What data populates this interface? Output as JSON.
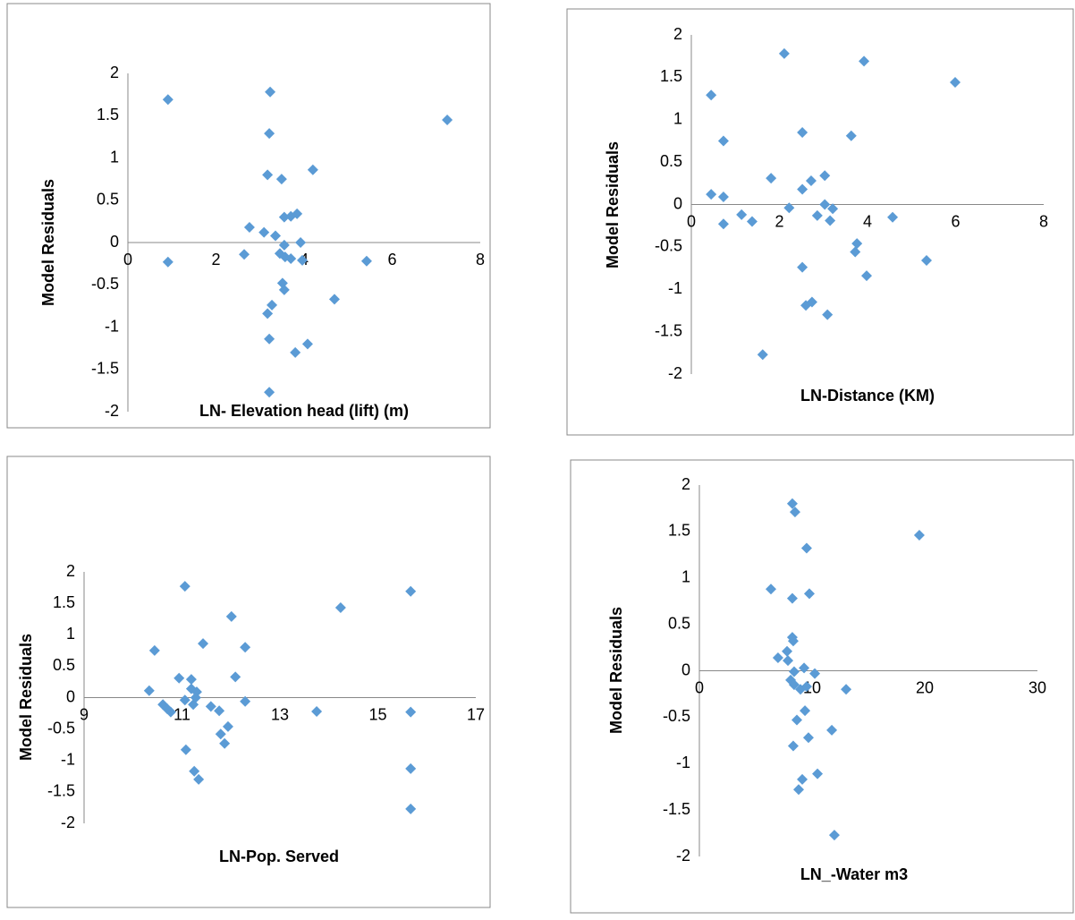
{
  "chart_data": [
    {
      "type": "scatter",
      "x_label": "LN- Elevation head (lift) (m)",
      "y_label": "Model Residuals",
      "color": "#5b9bd5",
      "xlim": [
        0,
        8
      ],
      "xticks": [
        0,
        2,
        4,
        6,
        8
      ],
      "ylim": [
        -2,
        2
      ],
      "yticks": [
        -2,
        -1.5,
        -1,
        -0.5,
        0,
        0.5,
        1,
        1.5,
        2
      ],
      "x": [
        0.91,
        0.91,
        3.23,
        3.21,
        3.17,
        3.49,
        4.2,
        2.76,
        2.64,
        3.09,
        3.35,
        3.55,
        3.7,
        3.84,
        3.55,
        3.45,
        3.57,
        3.7,
        3.92,
        3.96,
        3.51,
        3.55,
        3.27,
        3.17,
        3.21,
        4.08,
        3.8,
        3.21,
        4.69,
        5.42,
        7.25
      ],
      "y": [
        1.69,
        -0.23,
        1.78,
        1.29,
        0.8,
        0.75,
        0.86,
        0.18,
        -0.14,
        0.12,
        0.08,
        0.3,
        0.31,
        0.34,
        -0.03,
        -0.13,
        -0.17,
        -0.19,
        0.0,
        -0.21,
        -0.48,
        -0.56,
        -0.74,
        -0.84,
        -1.14,
        -1.2,
        -1.3,
        -1.77,
        -0.67,
        -0.22,
        1.45
      ]
    },
    {
      "type": "scatter",
      "x_label": "LN-Distance (KM)",
      "y_label": "Model Residuals",
      "color": "#5b9bd5",
      "xlim": [
        0,
        8
      ],
      "xticks": [
        0,
        2,
        4,
        6,
        8
      ],
      "ylim": [
        -2,
        2
      ],
      "yticks": [
        -2,
        -1.5,
        -1,
        -0.5,
        0,
        0.5,
        1,
        1.5,
        2
      ],
      "x": [
        0.45,
        0.45,
        0.73,
        0.73,
        0.73,
        1.14,
        1.38,
        1.81,
        2.11,
        2.22,
        2.52,
        2.52,
        2.52,
        2.6,
        2.72,
        2.74,
        2.86,
        3.03,
        3.03,
        3.15,
        3.21,
        3.09,
        3.63,
        3.76,
        3.72,
        3.92,
        3.98,
        4.57,
        5.34,
        5.99,
        1.62
      ],
      "y": [
        1.29,
        0.12,
        0.75,
        0.09,
        -0.23,
        -0.12,
        -0.2,
        0.31,
        1.78,
        -0.04,
        0.85,
        0.18,
        -0.74,
        -1.19,
        0.28,
        -1.15,
        -0.13,
        0.34,
        0.0,
        -0.19,
        -0.05,
        -1.3,
        0.81,
        -0.46,
        -0.56,
        1.69,
        -0.84,
        -0.15,
        -0.66,
        1.44,
        -1.77
      ]
    },
    {
      "type": "scatter",
      "x_label": "LN-Pop. Served",
      "y_label": "Model Residuals",
      "color": "#5b9bd5",
      "xlim": [
        9,
        17
      ],
      "xticks": [
        9,
        11,
        13,
        15,
        17
      ],
      "ylim": [
        -2,
        2
      ],
      "yticks": [
        -2,
        -1.5,
        -1,
        -0.5,
        0,
        0.5,
        1,
        1.5,
        2
      ],
      "x": [
        10.33,
        10.44,
        10.61,
        10.7,
        10.77,
        10.94,
        11.06,
        11.06,
        11.08,
        11.19,
        11.19,
        11.23,
        11.3,
        11.28,
        11.25,
        11.34,
        11.43,
        11.59,
        11.79,
        11.76,
        11.87,
        11.94,
        12.01,
        12.09,
        12.29,
        12.29,
        13.75,
        14.24,
        15.67,
        15.67,
        15.67,
        15.67
      ],
      "y": [
        0.11,
        0.75,
        -0.11,
        -0.18,
        -0.23,
        0.31,
        1.77,
        -0.04,
        -0.83,
        0.29,
        0.14,
        -0.11,
        0.09,
        0.0,
        -1.17,
        -1.3,
        0.86,
        -0.14,
        -0.58,
        -0.21,
        -0.73,
        -0.46,
        1.29,
        0.33,
        0.8,
        -0.06,
        -0.22,
        1.43,
        1.69,
        -0.23,
        -1.13,
        -1.77
      ]
    },
    {
      "type": "scatter",
      "x_label": "LN_-Water m3",
      "y_label": "Model Residuals",
      "color": "#5b9bd5",
      "xlim": [
        0,
        30
      ],
      "xticks": [
        0,
        10,
        20,
        30
      ],
      "ylim": [
        -2,
        2
      ],
      "yticks": [
        -2,
        -1.5,
        -1,
        -0.5,
        0,
        0.5,
        1,
        1.5,
        2
      ],
      "x": [
        6.35,
        6.98,
        7.78,
        7.86,
        8.1,
        8.25,
        8.25,
        8.25,
        8.33,
        8.41,
        8.49,
        8.33,
        8.41,
        8.65,
        8.81,
        9.13,
        8.97,
        9.29,
        9.37,
        9.52,
        9.52,
        9.68,
        9.76,
        10.24,
        10.48,
        11.75,
        11.98,
        13.02,
        19.52
      ],
      "y": [
        0.88,
        0.14,
        0.21,
        0.11,
        -0.1,
        1.8,
        0.78,
        0.36,
        0.32,
        -0.01,
        1.71,
        -0.81,
        -0.15,
        -0.53,
        -1.28,
        -1.17,
        -0.2,
        0.03,
        -0.43,
        1.32,
        -0.17,
        -0.72,
        0.83,
        -0.03,
        -1.11,
        -0.64,
        -1.77,
        -0.2,
        1.46
      ]
    }
  ]
}
